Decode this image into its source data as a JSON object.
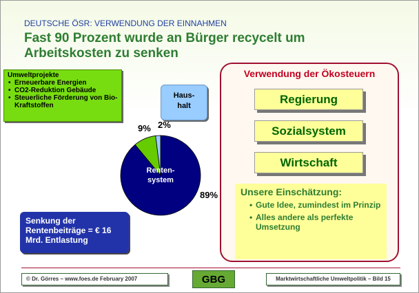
{
  "header": {
    "kicker": "DEUTSCHE ÖSR: VERWENDUNG DER EINNAHMEN",
    "title": "Fast 90 Prozent wurde an Bürger recycelt um Arbeitskosten zu senken"
  },
  "chart_data": {
    "type": "pie",
    "categories": [
      "Renten-\nsystem",
      "Umweltprojekte",
      "Haus-\nhalt"
    ],
    "values": [
      89,
      9,
      2
    ],
    "value_labels": [
      "89%",
      "9%",
      "2%"
    ],
    "colors": [
      "#000080",
      "#66cc00",
      "#99ccff"
    ]
  },
  "callouts": {
    "environment": {
      "title": "Umweltprojekte",
      "items": [
        "Erneuerbare Energien",
        "CO2-Reduktion Gebäude",
        "Steuerliche Förderung von Bio-Kraftstoffen"
      ]
    },
    "pension": "Senkung der Rentenbeiträge = € 16 Mrd. Entlastung"
  },
  "diagram": {
    "title": "Verwendung der Ökosteuern",
    "boxes": [
      "Regierung",
      "Sozialsystem",
      "Wirtschaft"
    ],
    "assessment": {
      "title": "Unsere Einschätzung:",
      "items": [
        "Gute Idee, zumindest im Prinzip",
        "Alles andere als perfekte Umsetzung"
      ]
    }
  },
  "footer": {
    "left": "© Dr. Görres – www.foes.de  February 2007",
    "center": "GBG",
    "right": "Marktwirtschaftliche Umweltpolitik – Bild 15"
  }
}
